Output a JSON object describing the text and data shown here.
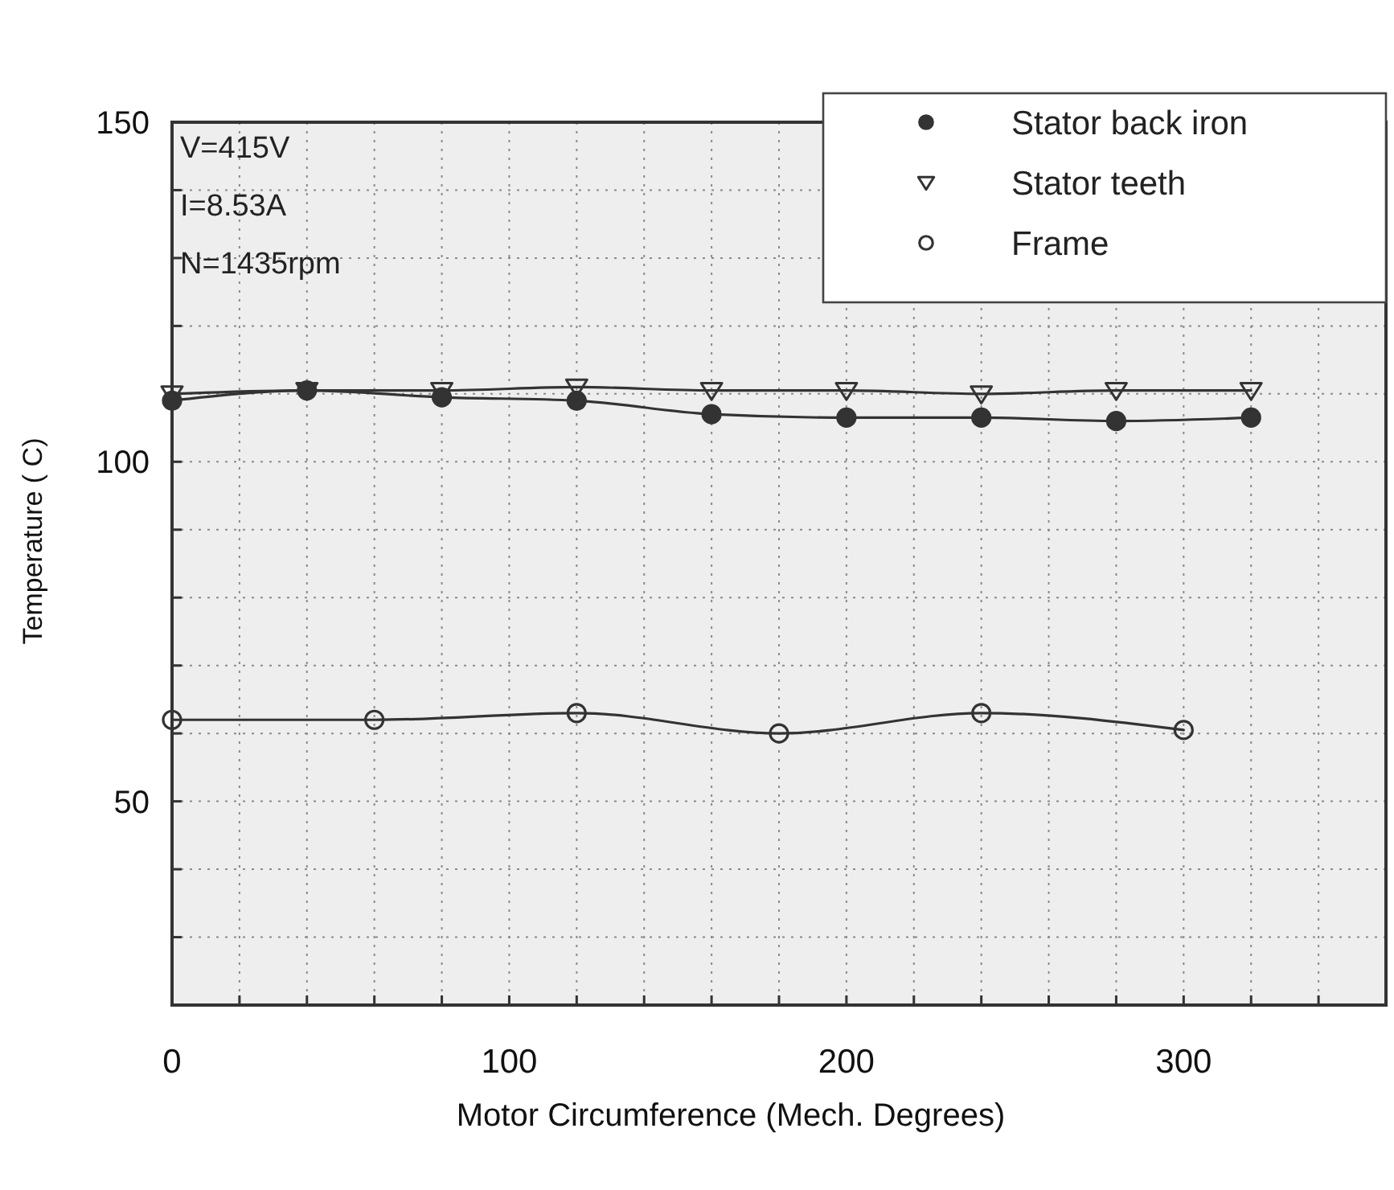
{
  "chart_data": {
    "type": "line",
    "xlabel": "Motor Circumference (Mech. Degrees)",
    "ylabel": "Temperature ( C)",
    "annotations": [
      "V=415V",
      "I=8.53A",
      "N=1435rpm"
    ],
    "series": [
      {
        "name": "Stator back iron",
        "color": "#333333",
        "marker": "circle",
        "x": [
          0,
          40,
          80,
          120,
          160,
          200,
          240,
          280,
          320
        ],
        "values": [
          109,
          110.5,
          109.5,
          109,
          107,
          106.5,
          106.5,
          106,
          106.5
        ]
      },
      {
        "name": "Stator teeth",
        "color": "#333333",
        "marker": "triangle-open",
        "x": [
          0,
          40,
          80,
          120,
          160,
          200,
          240,
          280,
          320
        ],
        "values": [
          110,
          110.5,
          110.5,
          111,
          110.5,
          110.5,
          110,
          110.5,
          110.5
        ]
      },
      {
        "name": "Frame",
        "color": "#333333",
        "marker": "circle-open",
        "x": [
          0,
          60,
          120,
          180,
          240,
          300
        ],
        "values": [
          62,
          62,
          63,
          60,
          63,
          60.5
        ]
      }
    ],
    "xlim": [
      0,
      360
    ],
    "xticks": [
      0,
      {
        "value": 20,
        "label": null
      },
      {
        "value": 40,
        "label": null
      },
      {
        "value": 60,
        "label": null
      },
      {
        "value": 80,
        "label": null
      },
      100,
      {
        "value": 120,
        "label": null
      },
      {
        "value": 140,
        "label": null
      },
      {
        "value": 160,
        "label": null
      },
      {
        "value": 180,
        "label": null
      },
      200,
      {
        "value": 220,
        "label": null
      },
      {
        "value": 240,
        "label": null
      },
      {
        "value": 260,
        "label": null
      },
      {
        "value": 280,
        "label": null
      },
      300,
      {
        "value": 320,
        "label": null
      },
      {
        "value": 340,
        "label": null
      }
    ],
    "ylim": [
      20,
      150
    ],
    "yticks": [
      {
        "value": 30,
        "label": null
      },
      {
        "value": 40,
        "label": null
      },
      50,
      {
        "value": 60,
        "label": null
      },
      {
        "value": 70,
        "label": null
      },
      {
        "value": 80,
        "label": null
      },
      {
        "value": 90,
        "label": null
      },
      100,
      {
        "value": 110,
        "label": null
      },
      {
        "value": 120,
        "label": null
      },
      {
        "value": 130,
        "label": null
      },
      {
        "value": 140,
        "label": null
      },
      150
    ],
    "grid": true,
    "legend": "top right",
    "line_style": "solid"
  }
}
